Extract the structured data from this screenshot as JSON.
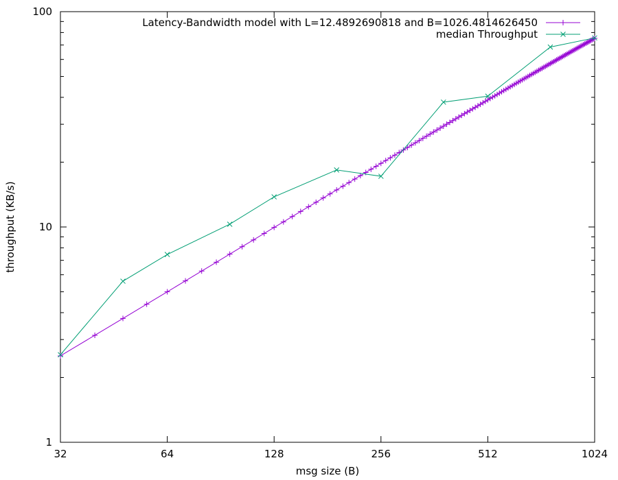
{
  "chart_data": {
    "type": "line",
    "title": "",
    "xlabel": "msg size (B)",
    "ylabel": "throughput (KB/s)",
    "x_scale": "log2",
    "y_scale": "log10",
    "xlim": [
      32,
      1024
    ],
    "ylim": [
      1,
      100
    ],
    "x_ticks": [
      32,
      64,
      128,
      256,
      512,
      1024
    ],
    "x_tick_labels": [
      "32",
      "64",
      "128",
      "256",
      "512",
      "1024"
    ],
    "y_ticks": [
      1,
      10,
      100
    ],
    "y_tick_labels": [
      "1",
      "10",
      "100"
    ],
    "grid": false,
    "legend_position": "top-right",
    "model": {
      "L": 12.4892690818,
      "B": 1026.481462645
    },
    "series": [
      {
        "name": "Latency-Bandwidth model with L=12.4892690818 and B=1026.4814626450",
        "color": "#9400d3",
        "marker": "plus",
        "x": [
          32,
          40,
          48,
          56,
          64,
          72,
          80,
          88,
          96,
          104,
          112,
          120,
          128,
          136,
          144,
          152,
          160,
          168,
          176,
          184,
          192,
          200,
          208,
          216,
          224,
          232,
          240,
          248,
          256,
          264,
          272,
          280,
          288,
          296,
          304,
          312,
          320,
          328,
          336,
          344,
          352,
          360,
          368,
          376,
          384,
          392,
          400,
          408,
          416,
          424,
          432,
          440,
          448,
          456,
          464,
          472,
          480,
          488,
          496,
          504,
          512,
          520,
          528,
          536,
          544,
          552,
          560,
          568,
          576,
          584,
          592,
          600,
          608,
          616,
          624,
          632,
          640,
          648,
          656,
          664,
          672,
          680,
          688,
          696,
          704,
          712,
          720,
          728,
          736,
          744,
          752,
          760,
          768,
          776,
          784,
          792,
          800,
          808,
          816,
          824,
          832,
          840,
          848,
          856,
          864,
          872,
          880,
          888,
          896,
          904,
          912,
          920,
          928,
          936,
          944,
          952,
          960,
          968,
          976,
          984,
          992,
          1000,
          1008,
          1016,
          1024
        ],
        "y": [
          2.52,
          3.14,
          3.76,
          4.38,
          5.0,
          5.62,
          6.24,
          6.86,
          7.48,
          8.1,
          8.71,
          9.33,
          9.95,
          10.56,
          11.18,
          11.8,
          12.41,
          13.02,
          13.64,
          14.25,
          14.86,
          15.47,
          16.08,
          16.7,
          17.31,
          17.92,
          18.53,
          19.13,
          19.74,
          20.35,
          20.96,
          21.56,
          22.17,
          22.78,
          23.38,
          23.99,
          24.59,
          25.19,
          25.8,
          26.4,
          27.0,
          27.6,
          28.2,
          28.8,
          29.4,
          30.0,
          30.6,
          31.2,
          31.79,
          32.39,
          32.98,
          33.58,
          34.17,
          34.77,
          35.36,
          35.95,
          36.55,
          37.14,
          37.73,
          38.32,
          38.91,
          39.5,
          40.08,
          40.67,
          41.26,
          41.84,
          42.43,
          43.01,
          43.6,
          44.18,
          44.76,
          45.35,
          45.93,
          46.51,
          47.09,
          47.67,
          48.25,
          48.82,
          49.4,
          49.98,
          50.55,
          51.13,
          51.7,
          52.28,
          52.85,
          53.42,
          53.99,
          54.57,
          55.14,
          55.71,
          56.27,
          56.84,
          57.41,
          57.98,
          58.54,
          59.11,
          59.67,
          60.24,
          60.8,
          61.36,
          61.92,
          62.48,
          63.04,
          63.6,
          64.16,
          64.72,
          65.28,
          65.83,
          66.39,
          66.94,
          67.5,
          68.05,
          68.6,
          69.16,
          69.71,
          70.26,
          70.81,
          71.36,
          71.9,
          72.45,
          73.0,
          73.55,
          74.09,
          74.63,
          75.18
        ]
      },
      {
        "name": "median Throughput",
        "color": "#009e73",
        "marker": "cross",
        "x": [
          32,
          48,
          64,
          96,
          128,
          192,
          256,
          384,
          512,
          768,
          1024
        ],
        "y": [
          2.55,
          5.6,
          7.45,
          10.3,
          13.8,
          18.4,
          17.2,
          38.0,
          40.5,
          68.5,
          75.5
        ]
      }
    ]
  }
}
